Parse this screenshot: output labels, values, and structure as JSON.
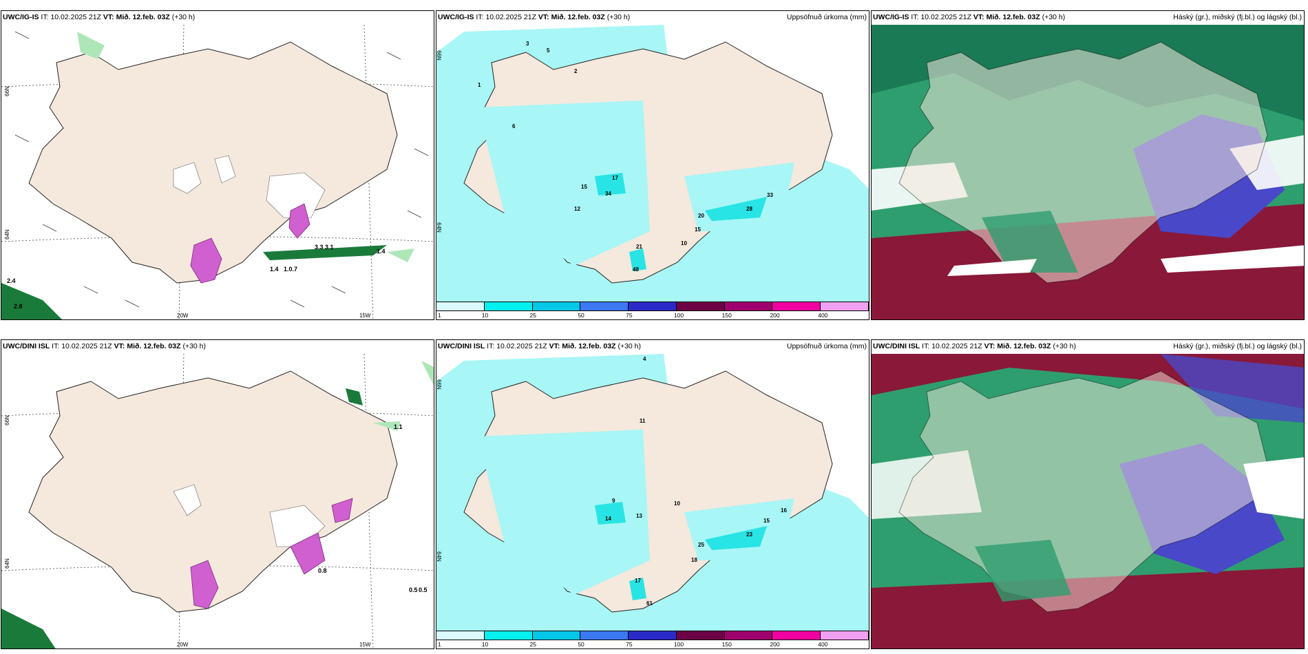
{
  "panels": [
    {
      "model": "UWC/IG-IS",
      "it": "10.02.2025 21Z",
      "vt": "Mið. 12.feb. 03Z",
      "lead": "(+30 h)",
      "right_title": "",
      "lat_label": "66N",
      "lat_label2": "64N",
      "lon_label": "20W",
      "lon_label2": "15W"
    },
    {
      "model": "UWC/IG-IS",
      "it": "10.02.2025 21Z",
      "vt": "Mið. 12.feb. 03Z",
      "lead": "(+30 h)",
      "right_title": "Uppsöfnuð úrkoma (mm)",
      "lat_label": "66N",
      "lat_label2": "64N"
    },
    {
      "model": "UWC/IG-IS",
      "it": "10.02.2025 21Z",
      "vt": "Mið. 12.feb. 03Z",
      "lead": "(+30 h)",
      "right_title": "Háský (gr.), miðský (fj.bl.) og lágský (bl.)"
    },
    {
      "model": "UWC/DINI ISL",
      "it": "10.02.2025 21Z",
      "vt": "Mið. 12.feb. 03Z",
      "lead": "(+30 h)",
      "right_title": "",
      "lat_label": "66N",
      "lat_label2": "64N",
      "lon_label": "20W",
      "lon_label2": "15W"
    },
    {
      "model": "UWC/DINI ISL",
      "it": "10.02.2025 21Z",
      "vt": "Mið. 12.feb. 03Z",
      "lead": "(+30 h)",
      "right_title": "Uppsöfnuð úrkoma (mm)",
      "lat_label": "66N",
      "lat_label2": "64N"
    },
    {
      "model": "UWC/DINI ISL",
      "it": "10.02.2025 21Z",
      "vt": "Mið. 12.feb. 03Z",
      "lead": "(+30 h)",
      "right_title": "Háský (gr.), miðský (fj.bl.) og lágský (bl.)"
    }
  ],
  "it_prefix": "IT:",
  "vt_prefix": "VT:",
  "colorbar": {
    "labels": [
      "1",
      "10",
      "25",
      "50",
      "75",
      "100",
      "150",
      "200",
      "400"
    ],
    "colors": [
      "#d9fbff",
      "#00f0f0",
      "#00c8e6",
      "#3c78f0",
      "#2a2ac8",
      "#6e0046",
      "#a0006e",
      "#f000a0",
      "#f0a0f0"
    ]
  },
  "wind_labels_top": [
    "1.4",
    "1.0.7",
    "3.3 3.1",
    "1.4",
    "2.4",
    "2.8"
  ],
  "wind_labels_bottom": [
    "0.8",
    "1.1",
    "0.5",
    "0.5"
  ],
  "precip_labels_top": [
    "3",
    "5",
    "2",
    "1",
    "6",
    "15",
    "17",
    "34",
    "12",
    "21",
    "20",
    "15",
    "28",
    "33",
    "48",
    "10"
  ],
  "precip_labels_bottom": [
    "4",
    "11",
    "9",
    "13",
    "10",
    "25",
    "23",
    "15",
    "17",
    "61",
    "18",
    "14",
    "16"
  ],
  "colors": {
    "land": "#f5e8dc",
    "precip_light": "#a8f6f6",
    "precip_mid": "#28e4e4",
    "cloud_high": "#2e9e6e",
    "cloud_mid": "#4848c8",
    "cloud_low": "#8a1838"
  }
}
